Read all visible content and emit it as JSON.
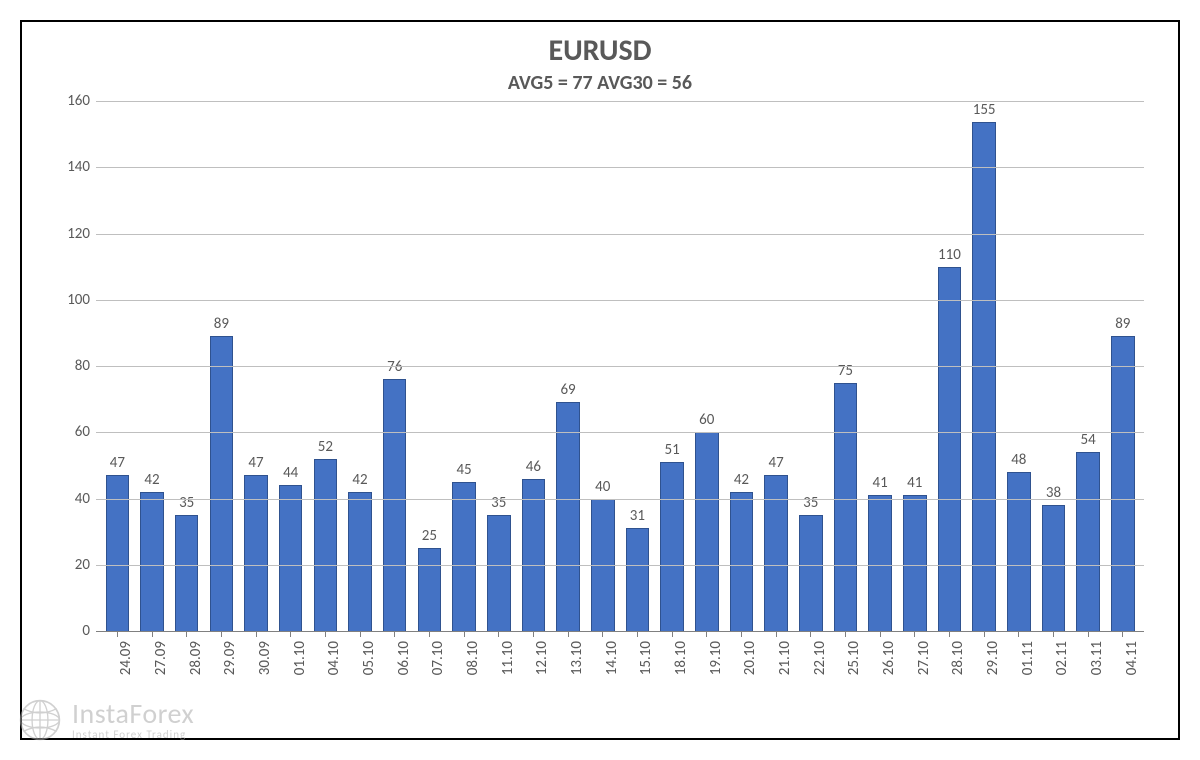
{
  "chart": {
    "type": "bar",
    "title": "EURUSD",
    "title_fontsize": 30,
    "subtitle": "AVG5 = 77 AVG30 = 56",
    "subtitle_fontsize": 20,
    "title_color": "#595959",
    "background_color": "#ffffff",
    "border_color": "#000000",
    "y": {
      "min": 0,
      "max": 160,
      "tick_step": 20,
      "ticks": [
        0,
        20,
        40,
        60,
        80,
        100,
        120,
        140,
        160
      ],
      "label_fontsize": 15,
      "label_color": "#595959"
    },
    "grid": {
      "show": true,
      "color": "#bfbfbf",
      "baseline_color": "#808080"
    },
    "bars": {
      "fill_color": "#4472c4",
      "border_color": "#2f528f",
      "width_ratio": 0.68,
      "value_label_fontsize": 15,
      "value_label_color": "#595959",
      "categories": [
        "24.09",
        "27.09",
        "28.09",
        "29.09",
        "30.09",
        "01.10",
        "04.10",
        "05.10",
        "06.10",
        "07.10",
        "08.10",
        "11.10",
        "12.10",
        "13.10",
        "14.10",
        "15.10",
        "18.10",
        "19.10",
        "20.10",
        "21.10",
        "22.10",
        "25.10",
        "26.10",
        "27.10",
        "28.10",
        "29.10",
        "01.11",
        "02.11",
        "03.11",
        "04.11"
      ],
      "values": [
        47,
        42,
        35,
        89,
        47,
        44,
        52,
        42,
        76,
        25,
        45,
        35,
        46,
        69,
        40,
        31,
        51,
        60,
        42,
        47,
        35,
        75,
        41,
        41,
        110,
        155,
        48,
        38,
        54,
        89
      ]
    },
    "x": {
      "label_fontsize": 15,
      "label_color": "#595959",
      "rotation_deg": -90,
      "tick_color": "#808080"
    }
  },
  "watermark": {
    "brand": "InstaForex",
    "tagline": "Instant Forex Trading",
    "color": "#aaaaaa"
  }
}
